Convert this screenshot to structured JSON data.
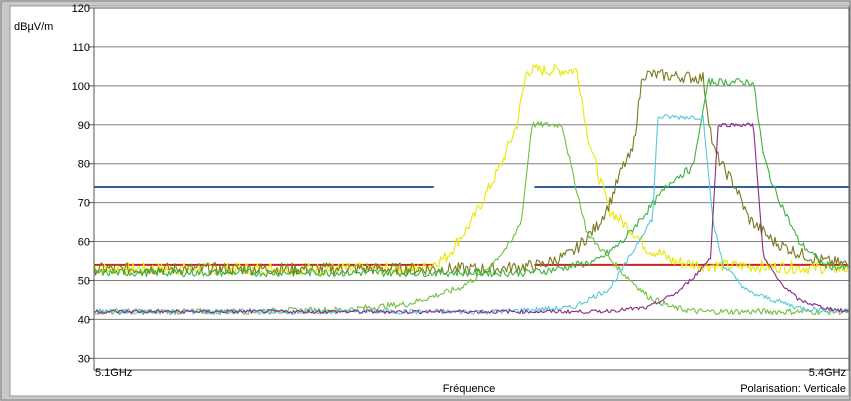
{
  "chart_data": {
    "type": "line",
    "ylabel": "dBµV/m",
    "xlabel": "Fréquence",
    "note": "Polarisation: Verticale",
    "x_tick_labels": [
      "5.1GHz",
      "5.4GHz"
    ],
    "xlim": [
      5.1,
      5.4
    ],
    "ylim": [
      27,
      120
    ],
    "y_ticks": [
      30,
      40,
      50,
      60,
      70,
      80,
      90,
      100,
      110,
      120
    ],
    "grid": true,
    "reference_lines": [
      {
        "color": "#3a5a9a",
        "y": 74,
        "x_ranges": [
          [
            5.1,
            5.235
          ],
          [
            5.275,
            5.4
          ]
        ]
      },
      {
        "color": "#cc2222",
        "y": 54,
        "x_ranges": [
          [
            5.1,
            5.235
          ],
          [
            5.275,
            5.4
          ]
        ]
      }
    ],
    "series": [
      {
        "color": "#e8e800",
        "noise": 1.6,
        "points": [
          [
            5.1,
            53
          ],
          [
            5.23,
            53
          ],
          [
            5.24,
            56
          ],
          [
            5.25,
            65
          ],
          [
            5.262,
            80
          ],
          [
            5.268,
            90
          ],
          [
            5.272,
            104
          ],
          [
            5.292,
            104
          ],
          [
            5.296,
            88
          ],
          [
            5.3,
            78
          ],
          [
            5.305,
            68
          ],
          [
            5.315,
            62
          ],
          [
            5.32,
            58
          ],
          [
            5.325,
            57
          ],
          [
            5.33,
            55
          ],
          [
            5.34,
            54
          ],
          [
            5.4,
            53
          ]
        ]
      },
      {
        "color": "#7a7a20",
        "noise": 1.6,
        "points": [
          [
            5.1,
            53
          ],
          [
            5.26,
            53
          ],
          [
            5.278,
            54
          ],
          [
            5.29,
            57
          ],
          [
            5.3,
            64
          ],
          [
            5.305,
            70
          ],
          [
            5.31,
            79
          ],
          [
            5.314,
            83
          ],
          [
            5.318,
            103
          ],
          [
            5.342,
            102
          ],
          [
            5.346,
            84
          ],
          [
            5.35,
            79
          ],
          [
            5.355,
            74
          ],
          [
            5.36,
            66
          ],
          [
            5.37,
            60
          ],
          [
            5.38,
            57
          ],
          [
            5.39,
            55
          ],
          [
            5.4,
            54
          ]
        ]
      },
      {
        "color": "#70c040",
        "noise": 0.8,
        "points": [
          [
            5.1,
            42
          ],
          [
            5.15,
            42
          ],
          [
            5.2,
            42.5
          ],
          [
            5.225,
            44
          ],
          [
            5.245,
            48
          ],
          [
            5.255,
            52
          ],
          [
            5.266,
            60
          ],
          [
            5.27,
            66
          ],
          [
            5.274,
            90
          ],
          [
            5.286,
            90
          ],
          [
            5.29,
            78
          ],
          [
            5.296,
            62
          ],
          [
            5.31,
            52
          ],
          [
            5.32,
            46
          ],
          [
            5.33,
            43
          ],
          [
            5.34,
            42
          ],
          [
            5.4,
            42
          ]
        ]
      },
      {
        "color": "#40b040",
        "noise": 1.0,
        "points": [
          [
            5.1,
            52
          ],
          [
            5.27,
            52
          ],
          [
            5.28,
            52.5
          ],
          [
            5.3,
            55
          ],
          [
            5.31,
            60
          ],
          [
            5.32,
            68
          ],
          [
            5.33,
            76
          ],
          [
            5.338,
            79
          ],
          [
            5.344,
            101
          ],
          [
            5.362,
            101
          ],
          [
            5.366,
            82
          ],
          [
            5.37,
            74
          ],
          [
            5.38,
            60
          ],
          [
            5.39,
            54
          ],
          [
            5.4,
            53
          ]
        ]
      },
      {
        "color": "#5ac8d8",
        "noise": 0.7,
        "points": [
          [
            5.1,
            42
          ],
          [
            5.26,
            42
          ],
          [
            5.29,
            43
          ],
          [
            5.305,
            48
          ],
          [
            5.312,
            55
          ],
          [
            5.318,
            62
          ],
          [
            5.322,
            66
          ],
          [
            5.324,
            92
          ],
          [
            5.342,
            92
          ],
          [
            5.346,
            65
          ],
          [
            5.35,
            54
          ],
          [
            5.36,
            47
          ],
          [
            5.38,
            43
          ],
          [
            5.4,
            42
          ]
        ]
      },
      {
        "color": "#8a2a8a",
        "noise": 0.5,
        "points": [
          [
            5.1,
            42
          ],
          [
            5.3,
            42
          ],
          [
            5.32,
            43
          ],
          [
            5.332,
            47
          ],
          [
            5.34,
            52
          ],
          [
            5.345,
            56
          ],
          [
            5.348,
            90
          ],
          [
            5.362,
            90
          ],
          [
            5.366,
            56
          ],
          [
            5.372,
            50
          ],
          [
            5.38,
            45
          ],
          [
            5.39,
            43
          ],
          [
            5.4,
            42
          ]
        ]
      }
    ]
  }
}
